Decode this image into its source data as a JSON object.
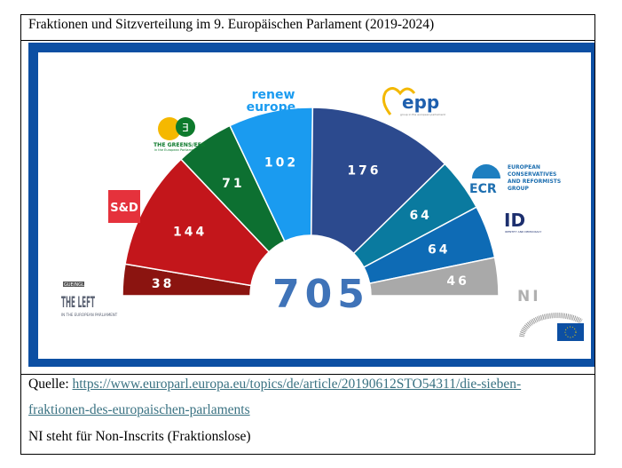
{
  "title": "Fraktionen und Sitzverteilung im 9. Europäischen Parlament (2019-2024)",
  "chart_data": {
    "type": "pie",
    "subtype": "semicircle-parliament",
    "total": 705,
    "categories": [
      "THE LEFT",
      "S&D",
      "THE GREENS/EFA",
      "renew europe.",
      "epp",
      "ECR",
      "ID",
      "NI"
    ],
    "values": [
      38,
      144,
      71,
      102,
      176,
      64,
      64,
      46
    ],
    "colors": [
      "#8b1410",
      "#c3161b",
      "#0d7031",
      "#1a9bf0",
      "#2c4a8e",
      "#0a7a9f",
      "#0e6bb5",
      "#a9a9a9"
    ]
  },
  "logos": {
    "left": {
      "main": "THE LEFT",
      "small": "IN THE EUROPEAN PARLIAMENT",
      "tag": "GUE/NGL"
    },
    "sd": "S&D",
    "greens": {
      "main": "THE GREENS/EFA",
      "small": "in the European Parliament"
    },
    "renew": [
      "renew",
      "europe."
    ],
    "epp": {
      "main": "epp",
      "small": "group in the european parliament"
    },
    "ecr": {
      "main": "ECR",
      "lines": [
        "EUROPEAN",
        "CONSERVATIVES",
        "AND REFORMISTS",
        "GROUP"
      ]
    },
    "id": {
      "main": "ID",
      "small": "IDENTITY AND DEMOCRACY"
    },
    "ni": "NI"
  },
  "source": {
    "label": "Quelle:",
    "link_line1": "https://www.europarl.europa.eu/topics/de/article/20190612STO54311/die-sieben-",
    "link_line2": "fraktionen-des-europaischen-parlaments",
    "note": "NI steht für Non-Inscrits (Fraktionslose)"
  }
}
